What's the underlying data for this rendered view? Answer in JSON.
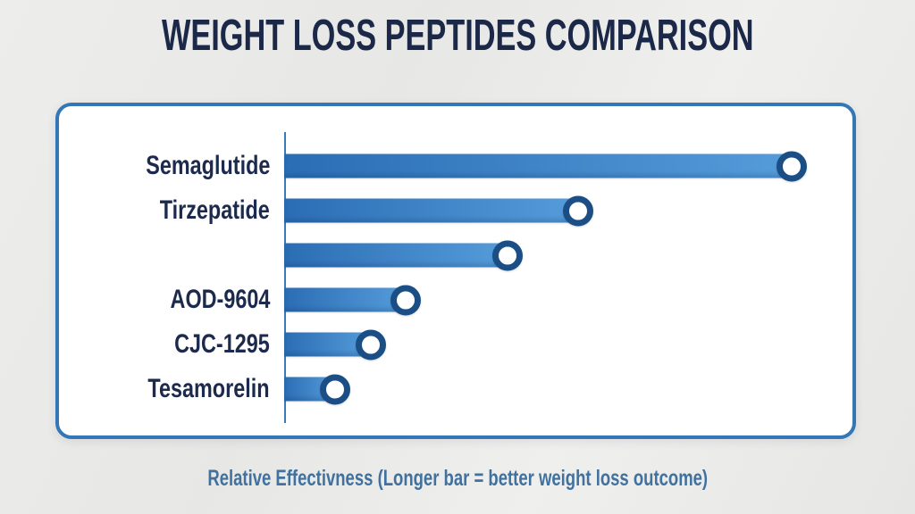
{
  "page": {
    "title": "WEIGHT LOSS PEPTIDES COMPARISON",
    "caption": "Relative Effectivness (Longer bar = better weight loss outcome)"
  },
  "colors": {
    "title_text": "#1b2847",
    "label_text": "#1c2b4d",
    "panel_border": "#3377b6",
    "panel_background": "#ffffff",
    "axis_line": "#3b7ab8",
    "bar_gradient_start": "#2b6db4",
    "bar_gradient_end": "#559cda",
    "dot_ring": "#1c4e86",
    "dot_fill": "#ffffff",
    "caption_text": "#41719e"
  },
  "chart_data": {
    "type": "bar",
    "orientation": "horizontal",
    "title": "WEIGHT LOSS PEPTIDES COMPARISON",
    "xlabel": "Relative Effectivness (Longer bar = better weight loss outcome)",
    "categories": [
      "Semaglutide",
      "Tirzepatide",
      "",
      "AOD-9604",
      "CJC-1295",
      "Tesamorelin"
    ],
    "values": [
      100,
      58,
      44,
      24,
      17,
      10
    ],
    "values_note": "No numeric axis shown; values are relative bar lengths estimated from pixels (longest bar = 100)",
    "xlim": [
      0,
      100
    ],
    "grid": false,
    "legend": false,
    "bar_end_marker": "white circle with dark blue ring"
  }
}
